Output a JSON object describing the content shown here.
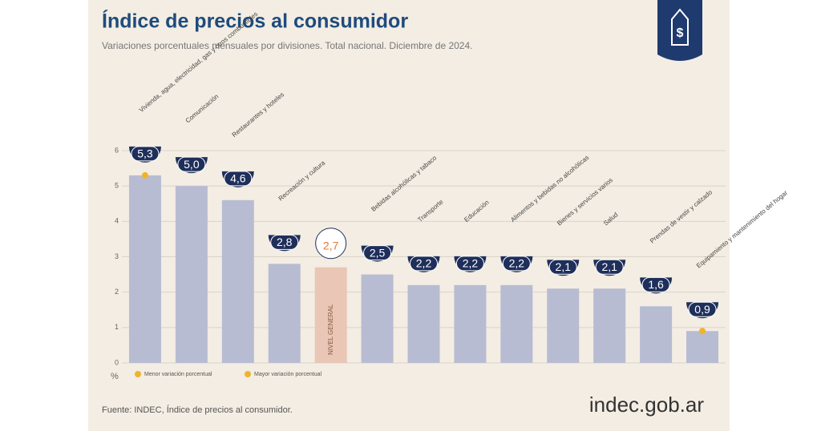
{
  "chart_data": {
    "type": "bar",
    "title": "Índice de precios al consumidor",
    "subtitle": "Variaciones porcentuales mensuales por divisiones. Total nacional. Diciembre de 2024.",
    "categories": [
      "Vivienda, agua, electricidad, gas y otros combustibles",
      "Comunicación",
      "Restaurantes y hoteles",
      "Recreación y cultura",
      "NIVEL GENERAL",
      "Bebidas alcohólicas y tabaco",
      "Transporte",
      "Educación",
      "Alimentos y bebidas no alcohólicas",
      "Bienes y servicios varios",
      "Salud",
      "Prendas de vestir y calzado",
      "Equipamiento y mantenimiento del hogar"
    ],
    "values": [
      5.3,
      5.0,
      4.6,
      2.8,
      2.7,
      2.5,
      2.2,
      2.2,
      2.2,
      2.1,
      2.1,
      1.6,
      0.9
    ],
    "value_labels": [
      "5,3",
      "5,0",
      "4,6",
      "2,8",
      "2,7",
      "2,5",
      "2,2",
      "2,2",
      "2,2",
      "2,1",
      "2,1",
      "1,6",
      "0,9"
    ],
    "color": "#b8bcd2",
    "bar_colors": [
      "#b8bcd2",
      "#b8bcd2",
      "#b8bcd2",
      "#b8bcd2",
      "#e9c6b5",
      "#b8bcd2",
      "#b8bcd2",
      "#b8bcd2",
      "#b8bcd2",
      "#b8bcd2",
      "#b8bcd2",
      "#b8bcd2",
      "#b8bcd2"
    ],
    "ylim": [
      0,
      6
    ],
    "yticks": [
      0,
      1,
      2,
      3,
      4,
      5,
      6
    ],
    "grid": true,
    "y_label": "%",
    "legend": [
      "Menor variación porcentual",
      "Mayor variación porcentual"
    ],
    "source": "Fuente: INDEC, Índice de precios al consumidor.",
    "brand": "indec.gob.ar"
  }
}
